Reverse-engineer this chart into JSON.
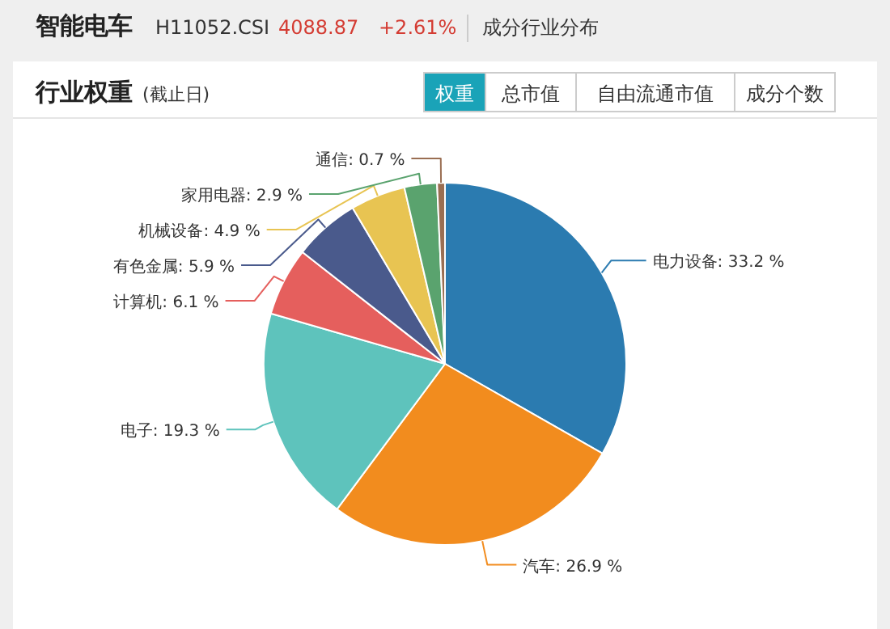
{
  "chart_data": {
    "type": "pie",
    "title": "行业权重",
    "subtitle": "(截止日)",
    "annotations": [
      "智能电车",
      "H11052.CSI",
      "4088.87",
      "+2.61%",
      "成分行业分布",
      "权重",
      "总市值",
      "自由流通市值",
      "成分个数"
    ],
    "categories": [
      "电力设备",
      "汽车",
      "电子",
      "计算机",
      "有色金属",
      "机械设备",
      "家用电器",
      "通信"
    ],
    "values": [
      33.2,
      26.9,
      19.3,
      6.1,
      5.9,
      4.9,
      2.9,
      0.7
    ],
    "value_labels": [
      "33.2 %",
      "26.9 %",
      "19.3 %",
      "6.1 %",
      "5.9 %",
      "4.9 %",
      "2.9 %",
      "0.7 %"
    ],
    "colors": [
      "#2b7bb0",
      "#f28c1e",
      "#5ec3bc",
      "#e55f5d",
      "#4a5a8c",
      "#e8c452",
      "#5aa36e",
      "#9a6e52"
    ]
  }
}
